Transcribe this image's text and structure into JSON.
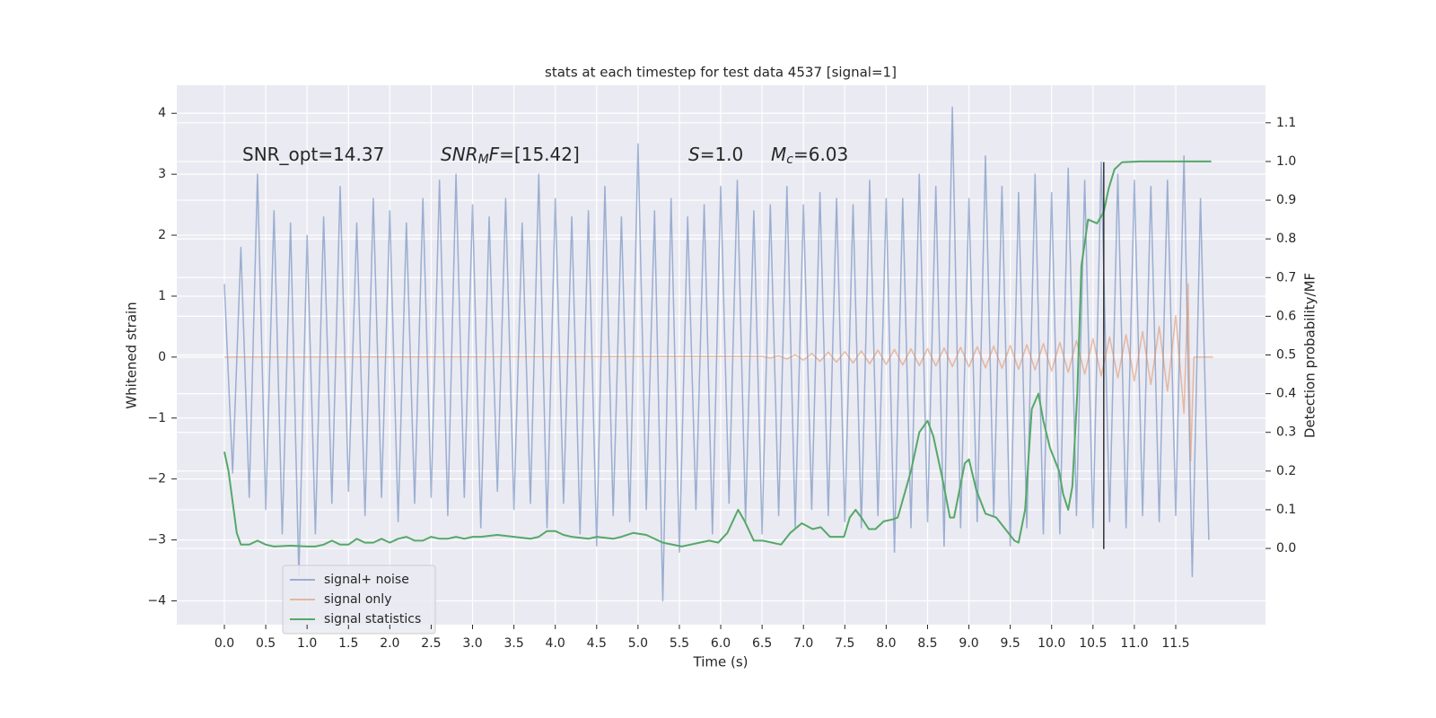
{
  "chart_data": {
    "type": "line",
    "title": "stats at each timestep for test data 4537 [signal=1]",
    "x_label": "Time (s)",
    "y_label": "Whitened strain",
    "y2_label": "Detection probability/MF",
    "xlim": [
      -0.575,
      12.585
    ],
    "ylim": [
      -4.39,
      4.46
    ],
    "y2lim": [
      -0.197,
      1.197
    ],
    "xticks": [
      {
        "value": 0,
        "label": "0.0"
      },
      0.5,
      {
        "value": 1,
        "label": "1.0"
      },
      1.5,
      {
        "value": 2,
        "label": "2.0"
      },
      2.5,
      {
        "value": 3,
        "label": "3.0"
      },
      3.5,
      {
        "value": 4,
        "label": "4.0"
      },
      4.5,
      {
        "value": 5,
        "label": "5.0"
      },
      5.5,
      {
        "value": 6,
        "label": "6.0"
      },
      6.5,
      {
        "value": 7,
        "label": "7.0"
      },
      7.5,
      {
        "value": 8,
        "label": "8.0"
      },
      8.5,
      {
        "value": 9,
        "label": "9.0"
      },
      9.5,
      {
        "value": 10,
        "label": "10.0"
      },
      10.5,
      {
        "value": 11,
        "label": "11.0"
      },
      11.5
    ],
    "yticks": [
      {
        "value": -4,
        "label": "−4"
      },
      {
        "value": -3,
        "label": "−3"
      },
      {
        "value": -2,
        "label": "−2"
      },
      {
        "value": -1,
        "label": "−1"
      },
      0,
      1,
      2,
      3,
      4
    ],
    "y2ticks": [
      {
        "value": 0,
        "label": "0.0"
      },
      0.1,
      0.2,
      0.3,
      0.4,
      0.5,
      0.6,
      0.7,
      0.8,
      0.9,
      {
        "value": 1,
        "label": "1.0"
      },
      1.1
    ],
    "grid": true,
    "legend": "lower left",
    "annotations": [
      [
        {
          "text": "SNR_opt=14.37"
        }
      ],
      [
        {
          "text": "SNR",
          "italic": true
        },
        {
          "text": "M",
          "italic": true,
          "sub": true
        },
        {
          "text": "F",
          "italic": true
        },
        {
          "text": "=[15.42]"
        }
      ],
      [
        {
          "text": "S",
          "italic": true
        },
        {
          "text": "=1.0"
        }
      ],
      [
        {
          "text": "M",
          "italic": true
        },
        {
          "text": "c",
          "italic": true,
          "sub": true
        },
        {
          "text": "=6.03"
        }
      ]
    ],
    "vline": {
      "x": 10.63,
      "ymin": -3.15,
      "ymax": 3.2,
      "color": "#333333"
    },
    "series": [
      {
        "name": "signal+ noise",
        "color": "#4c72b0",
        "opacity": 0.5,
        "x": [
          0,
          0.1,
          0.2,
          0.3,
          0.4,
          0.5,
          0.6,
          0.7,
          0.8,
          0.9,
          1,
          1.1,
          1.2,
          1.3,
          1.4,
          1.5,
          1.6,
          1.7,
          1.8,
          1.9,
          2,
          2.1,
          2.2,
          2.3,
          2.4,
          2.5,
          2.6,
          2.7,
          2.8,
          2.9,
          3,
          3.1,
          3.2,
          3.3,
          3.4,
          3.5,
          3.6,
          3.7,
          3.8,
          3.9,
          4,
          4.1,
          4.2,
          4.3,
          4.4,
          4.5,
          4.6,
          4.7,
          4.8,
          4.9,
          5,
          5.1,
          5.2,
          5.3,
          5.4,
          5.5,
          5.6,
          5.7,
          5.8,
          5.9,
          6,
          6.1,
          6.2,
          6.3,
          6.4,
          6.5,
          6.6,
          6.7,
          6.8,
          6.9,
          7,
          7.1,
          7.2,
          7.3,
          7.4,
          7.5,
          7.6,
          7.7,
          7.8,
          7.9,
          8,
          8.1,
          8.2,
          8.3,
          8.4,
          8.5,
          8.6,
          8.7,
          8.8,
          8.9,
          9,
          9.1,
          9.2,
          9.3,
          9.4,
          9.5,
          9.6,
          9.7,
          9.8,
          9.9,
          10,
          10.1,
          10.2,
          10.3,
          10.4,
          10.5,
          10.6,
          10.7,
          10.8,
          10.9,
          11,
          11.1,
          11.2,
          11.3,
          11.4,
          11.5,
          11.6,
          11.7,
          11.8,
          11.9
        ],
        "values": [
          1.2,
          -1.9,
          1.8,
          -2.3,
          3.0,
          -2.5,
          2.4,
          -2.9,
          2.2,
          -3.6,
          2.0,
          -2.9,
          2.3,
          -2.4,
          2.8,
          -2.2,
          2.2,
          -2.6,
          2.6,
          -2.3,
          2.4,
          -2.7,
          2.2,
          -2.4,
          2.6,
          -2.3,
          2.9,
          -2.6,
          3.0,
          -2.3,
          2.5,
          -2.8,
          2.3,
          -2.2,
          2.6,
          -2.5,
          2.2,
          -2.4,
          3.0,
          -2.8,
          2.6,
          -2.4,
          2.3,
          -2.9,
          2.4,
          -3.1,
          2.8,
          -2.6,
          2.3,
          -2.7,
          3.5,
          -2.5,
          2.4,
          -4.0,
          2.6,
          -3.2,
          2.3,
          -2.5,
          2.5,
          -2.9,
          2.8,
          -2.4,
          2.9,
          -2.7,
          2.4,
          -2.9,
          2.5,
          -2.6,
          2.8,
          -2.8,
          2.5,
          -2.5,
          2.7,
          -2.6,
          2.6,
          -2.7,
          2.5,
          -2.8,
          2.9,
          -2.6,
          2.6,
          -3.2,
          2.6,
          -2.8,
          3.0,
          -2.7,
          2.8,
          -3.1,
          4.1,
          -2.8,
          2.6,
          -2.7,
          3.3,
          -2.6,
          2.8,
          -3.1,
          2.7,
          -2.8,
          3.0,
          -2.9,
          2.7,
          -2.9,
          3.1,
          -2.6,
          2.9,
          -2.8,
          3.2,
          -2.7,
          3.0,
          -2.8,
          2.9,
          -2.6,
          2.8,
          -2.7,
          2.9,
          -2.6,
          3.3,
          -3.6,
          2.6,
          -3.0
        ]
      },
      {
        "name": "signal only",
        "color": "#dd8452",
        "opacity": 0.5,
        "x": [
          0,
          6.5,
          6.6,
          6.7,
          6.8,
          6.9,
          7,
          7.1,
          7.2,
          7.3,
          7.4,
          7.5,
          7.6,
          7.7,
          7.8,
          7.9,
          8,
          8.1,
          8.2,
          8.3,
          8.4,
          8.5,
          8.6,
          8.7,
          8.8,
          8.9,
          9,
          9.1,
          9.2,
          9.3,
          9.4,
          9.5,
          9.6,
          9.7,
          9.8,
          9.9,
          10,
          10.1,
          10.2,
          10.3,
          10.4,
          10.5,
          10.6,
          10.7,
          10.8,
          10.9,
          11,
          11.1,
          11.2,
          11.3,
          11.4,
          11.5,
          11.6,
          11.65,
          11.68,
          11.72,
          11.95
        ],
        "values": [
          0,
          0.01,
          -0.015,
          0.02,
          -0.03,
          0.04,
          -0.05,
          0.06,
          -0.07,
          0.08,
          -0.085,
          0.09,
          -0.095,
          0.1,
          -0.11,
          0.115,
          -0.12,
          0.125,
          -0.13,
          0.135,
          -0.14,
          0.14,
          -0.145,
          0.15,
          -0.155,
          0.16,
          -0.16,
          0.17,
          -0.175,
          0.18,
          -0.185,
          0.19,
          -0.2,
          0.205,
          -0.21,
          0.22,
          -0.23,
          0.24,
          -0.25,
          0.27,
          -0.28,
          0.3,
          -0.31,
          0.33,
          -0.34,
          0.37,
          -0.39,
          0.42,
          -0.45,
          0.5,
          -0.56,
          0.68,
          -0.92,
          1.2,
          -1.7,
          0,
          0
        ]
      },
      {
        "name": "signal statistics",
        "color": "#55a868",
        "axis": "y2",
        "x": [
          0,
          0.05,
          0.1,
          0.15,
          0.2,
          0.3,
          0.4,
          0.5,
          0.6,
          0.8,
          1.0,
          1.1,
          1.2,
          1.3,
          1.4,
          1.5,
          1.6,
          1.7,
          1.8,
          1.9,
          2.0,
          2.1,
          2.2,
          2.3,
          2.4,
          2.5,
          2.6,
          2.7,
          2.8,
          2.9,
          3.0,
          3.1,
          3.3,
          3.5,
          3.7,
          3.8,
          3.9,
          4.0,
          4.1,
          4.2,
          4.4,
          4.5,
          4.7,
          4.8,
          4.94,
          5.1,
          5.3,
          5.53,
          5.86,
          5.97,
          6.08,
          6.21,
          6.29,
          6.4,
          6.51,
          6.73,
          6.84,
          6.98,
          7.11,
          7.21,
          7.32,
          7.43,
          7.49,
          7.56,
          7.63,
          7.7,
          7.79,
          7.87,
          7.97,
          8.08,
          8.14,
          8.3,
          8.4,
          8.5,
          8.57,
          8.68,
          8.77,
          8.82,
          8.95,
          9.0,
          9.09,
          9.2,
          9.33,
          9.44,
          9.55,
          9.6,
          9.68,
          9.76,
          9.84,
          9.9,
          9.98,
          10.09,
          10.14,
          10.2,
          10.25,
          10.31,
          10.36,
          10.44,
          10.55,
          10.63,
          10.69,
          10.76,
          10.85,
          11.07,
          11.93
        ],
        "values": [
          0.25,
          0.2,
          0.12,
          0.04,
          0.01,
          0.01,
          0.02,
          0.01,
          0.005,
          0.007,
          0.005,
          0.005,
          0.01,
          0.02,
          0.01,
          0.01,
          0.025,
          0.015,
          0.015,
          0.025,
          0.015,
          0.025,
          0.03,
          0.02,
          0.02,
          0.03,
          0.025,
          0.025,
          0.03,
          0.025,
          0.03,
          0.03,
          0.035,
          0.03,
          0.025,
          0.03,
          0.045,
          0.045,
          0.035,
          0.03,
          0.025,
          0.03,
          0.025,
          0.03,
          0.04,
          0.035,
          0.015,
          0.005,
          0.02,
          0.015,
          0.04,
          0.1,
          0.07,
          0.02,
          0.02,
          0.01,
          0.04,
          0.065,
          0.05,
          0.055,
          0.03,
          0.03,
          0.03,
          0.08,
          0.1,
          0.08,
          0.05,
          0.05,
          0.07,
          0.075,
          0.08,
          0.2,
          0.3,
          0.33,
          0.29,
          0.18,
          0.08,
          0.08,
          0.22,
          0.23,
          0.15,
          0.09,
          0.08,
          0.05,
          0.02,
          0.015,
          0.1,
          0.36,
          0.4,
          0.33,
          0.26,
          0.2,
          0.14,
          0.1,
          0.16,
          0.4,
          0.73,
          0.85,
          0.84,
          0.87,
          0.93,
          0.98,
          0.998,
          1.0,
          1.0
        ]
      }
    ]
  }
}
